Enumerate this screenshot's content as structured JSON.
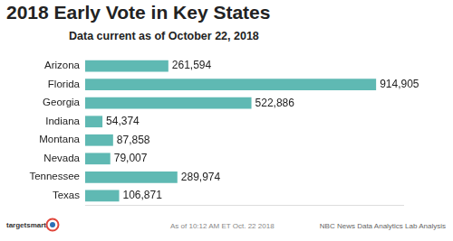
{
  "chart_data": {
    "type": "bar",
    "orientation": "horizontal",
    "title": "2018 Early Vote in Key States",
    "subtitle": "Data current as of October 22, 2018",
    "categories": [
      "Arizona",
      "Florida",
      "Georgia",
      "Indiana",
      "Montana",
      "Nevada",
      "Tennessee",
      "Texas"
    ],
    "values": [
      261594,
      914905,
      522886,
      54374,
      87858,
      79007,
      289974,
      106871
    ],
    "value_labels": [
      "261,594",
      "914,905",
      "522,886",
      "54,374",
      "87,858",
      "79,007",
      "289,974",
      "106,871"
    ],
    "color": "#5fb9b3",
    "xlim": [
      0,
      1000000
    ],
    "grid": false,
    "data_labels": true,
    "tick_labels": "y",
    "annotations": [
      "targetsmart",
      "As of 10:12 AM ET Oct. 22 2018",
      "NBC News Data Analytics Lab Analysis"
    ]
  }
}
